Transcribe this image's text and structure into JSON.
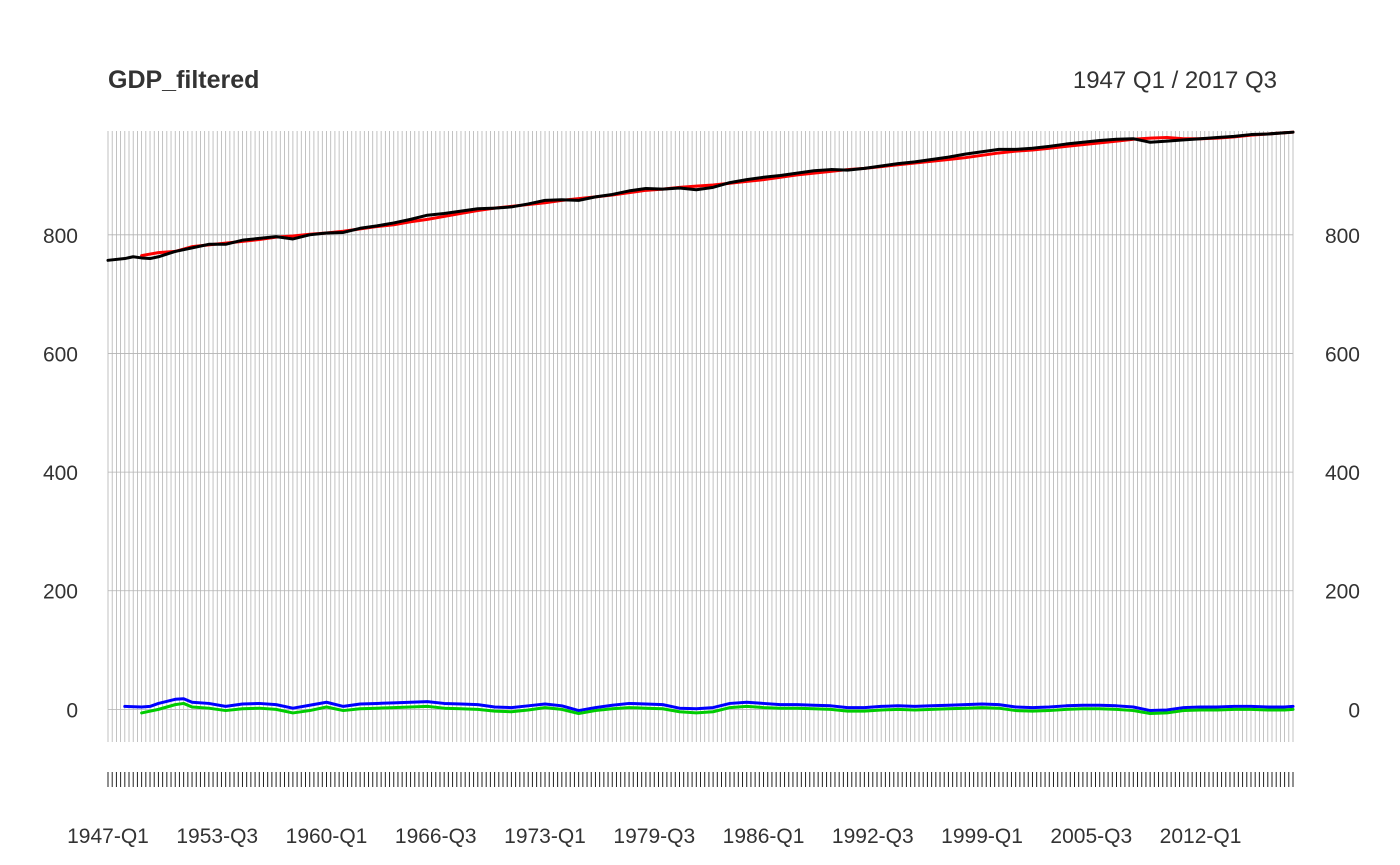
{
  "chart_data": {
    "type": "line",
    "title": "GDP_filtered",
    "subtitle": "1947 Q1 / 2017 Q3",
    "xlabel": "",
    "ylabel": "",
    "x_start": "1947-Q1",
    "x_end": "2017-Q3",
    "x_frequency": "quarterly",
    "xtick_labels": [
      "1947-Q1",
      "1953-Q3",
      "1960-Q1",
      "1966-Q3",
      "1973-Q1",
      "1979-Q3",
      "1986-Q1",
      "1992-Q3",
      "1999-Q1",
      "2005-Q3",
      "2012-Q1"
    ],
    "yticks": [
      0,
      200,
      400,
      600,
      800
    ],
    "ylim": [
      -55,
      975
    ],
    "grid": true,
    "y_axis_sides": [
      "left",
      "right"
    ],
    "series": [
      {
        "color": "#ff0000",
        "points": [
          [
            "1949-Q1",
            765
          ],
          [
            "1950-Q1",
            770
          ],
          [
            "1951-Q1",
            772
          ],
          [
            "1952-Q1",
            780
          ],
          [
            "1953-Q1",
            783
          ],
          [
            "1954-Q1",
            786
          ],
          [
            "1955-Q1",
            789
          ],
          [
            "1956-Q1",
            792
          ],
          [
            "1957-Q1",
            796
          ],
          [
            "1958-Q1",
            798
          ],
          [
            "1959-Q1",
            801
          ],
          [
            "1960-Q1",
            803
          ],
          [
            "1961-Q1",
            806
          ],
          [
            "1962-Q1",
            810
          ],
          [
            "1963-Q1",
            814
          ],
          [
            "1964-Q1",
            817
          ],
          [
            "1965-Q1",
            822
          ],
          [
            "1966-Q1",
            826
          ],
          [
            "1967-Q1",
            831
          ],
          [
            "1968-Q1",
            836
          ],
          [
            "1969-Q1",
            841
          ],
          [
            "1970-Q1",
            845
          ],
          [
            "1971-Q1",
            848
          ],
          [
            "1972-Q1",
            851
          ],
          [
            "1973-Q1",
            854
          ],
          [
            "1974-Q1",
            858
          ],
          [
            "1975-Q1",
            861
          ],
          [
            "1976-Q1",
            864
          ],
          [
            "1977-Q1",
            867
          ],
          [
            "1978-Q1",
            871
          ],
          [
            "1979-Q1",
            875
          ],
          [
            "1980-Q1",
            877
          ],
          [
            "1981-Q1",
            880
          ],
          [
            "1982-Q1",
            882
          ],
          [
            "1983-Q1",
            884
          ],
          [
            "1984-Q1",
            887
          ],
          [
            "1985-Q1",
            890
          ],
          [
            "1986-Q1",
            893
          ],
          [
            "1987-Q1",
            897
          ],
          [
            "1988-Q1",
            901
          ],
          [
            "1989-Q1",
            904
          ],
          [
            "1990-Q1",
            907
          ],
          [
            "1991-Q1",
            910
          ],
          [
            "1992-Q1",
            912
          ],
          [
            "1993-Q1",
            915
          ],
          [
            "1994-Q1",
            918
          ],
          [
            "1995-Q1",
            921
          ],
          [
            "1996-Q1",
            924
          ],
          [
            "1997-Q1",
            927
          ],
          [
            "1998-Q1",
            930
          ],
          [
            "1999-Q1",
            934
          ],
          [
            "2000-Q1",
            938
          ],
          [
            "2001-Q1",
            941
          ],
          [
            "2002-Q1",
            943
          ],
          [
            "2003-Q1",
            946
          ],
          [
            "2004-Q1",
            949
          ],
          [
            "2005-Q1",
            952
          ],
          [
            "2006-Q1",
            955
          ],
          [
            "2007-Q1",
            958
          ],
          [
            "2008-Q1",
            961
          ],
          [
            "2009-Q1",
            963
          ],
          [
            "2010-Q1",
            964
          ],
          [
            "2011-Q1",
            962
          ],
          [
            "2012-Q1",
            962
          ],
          [
            "2013-Q1",
            963
          ],
          [
            "2014-Q1",
            965
          ],
          [
            "2015-Q1",
            968
          ],
          [
            "2016-Q1",
            970
          ],
          [
            "2017-Q1",
            972
          ],
          [
            "2017-Q3",
            973
          ]
        ]
      },
      {
        "color": "#000000",
        "points": [
          [
            "1947-Q1",
            757
          ],
          [
            "1948-Q1",
            760
          ],
          [
            "1948-Q3",
            763
          ],
          [
            "1949-Q1",
            761
          ],
          [
            "1949-Q3",
            760
          ],
          [
            "1950-Q1",
            763
          ],
          [
            "1951-Q1",
            772
          ],
          [
            "1952-Q1",
            778
          ],
          [
            "1953-Q1",
            784
          ],
          [
            "1954-Q1",
            784
          ],
          [
            "1955-Q1",
            791
          ],
          [
            "1956-Q1",
            794
          ],
          [
            "1957-Q1",
            797
          ],
          [
            "1958-Q1",
            793
          ],
          [
            "1959-Q1",
            800
          ],
          [
            "1960-Q1",
            803
          ],
          [
            "1961-Q1",
            804
          ],
          [
            "1962-Q1",
            811
          ],
          [
            "1963-Q1",
            815
          ],
          [
            "1964-Q1",
            820
          ],
          [
            "1965-Q1",
            826
          ],
          [
            "1966-Q1",
            833
          ],
          [
            "1967-Q1",
            836
          ],
          [
            "1968-Q1",
            840
          ],
          [
            "1969-Q1",
            844
          ],
          [
            "1970-Q1",
            845
          ],
          [
            "1971-Q1",
            847
          ],
          [
            "1972-Q1",
            852
          ],
          [
            "1973-Q1",
            858
          ],
          [
            "1974-Q1",
            859
          ],
          [
            "1975-Q1",
            858
          ],
          [
            "1976-Q1",
            864
          ],
          [
            "1977-Q1",
            868
          ],
          [
            "1978-Q1",
            874
          ],
          [
            "1979-Q1",
            878
          ],
          [
            "1980-Q1",
            877
          ],
          [
            "1981-Q1",
            879
          ],
          [
            "1982-Q1",
            876
          ],
          [
            "1983-Q1",
            880
          ],
          [
            "1984-Q1",
            888
          ],
          [
            "1985-Q1",
            893
          ],
          [
            "1986-Q1",
            897
          ],
          [
            "1987-Q1",
            900
          ],
          [
            "1988-Q1",
            904
          ],
          [
            "1989-Q1",
            908
          ],
          [
            "1990-Q1",
            910
          ],
          [
            "1991-Q1",
            909
          ],
          [
            "1992-Q1",
            912
          ],
          [
            "1993-Q1",
            916
          ],
          [
            "1994-Q1",
            920
          ],
          [
            "1995-Q1",
            923
          ],
          [
            "1996-Q1",
            927
          ],
          [
            "1997-Q1",
            931
          ],
          [
            "1998-Q1",
            936
          ],
          [
            "1999-Q1",
            940
          ],
          [
            "2000-Q1",
            944
          ],
          [
            "2001-Q1",
            944
          ],
          [
            "2002-Q1",
            946
          ],
          [
            "2003-Q1",
            949
          ],
          [
            "2004-Q1",
            953
          ],
          [
            "2005-Q1",
            956
          ],
          [
            "2006-Q1",
            959
          ],
          [
            "2007-Q1",
            961
          ],
          [
            "2008-Q1",
            962
          ],
          [
            "2009-Q1",
            956
          ],
          [
            "2010-Q1",
            958
          ],
          [
            "2011-Q1",
            960
          ],
          [
            "2012-Q1",
            962
          ],
          [
            "2013-Q1",
            964
          ],
          [
            "2014-Q1",
            966
          ],
          [
            "2015-Q1",
            969
          ],
          [
            "2016-Q1",
            970
          ],
          [
            "2017-Q1",
            972
          ],
          [
            "2017-Q3",
            973
          ]
        ]
      },
      {
        "color": "#0000ff",
        "points": [
          [
            "1948-Q1",
            5
          ],
          [
            "1949-Q1",
            4
          ],
          [
            "1949-Q3",
            5
          ],
          [
            "1950-Q1",
            10
          ],
          [
            "1951-Q1",
            17
          ],
          [
            "1951-Q3",
            18
          ],
          [
            "1952-Q1",
            12
          ],
          [
            "1953-Q1",
            10
          ],
          [
            "1954-Q1",
            5
          ],
          [
            "1955-Q1",
            9
          ],
          [
            "1956-Q1",
            10
          ],
          [
            "1957-Q1",
            8
          ],
          [
            "1958-Q1",
            2
          ],
          [
            "1959-Q1",
            7
          ],
          [
            "1960-Q1",
            12
          ],
          [
            "1961-Q1",
            5
          ],
          [
            "1962-Q1",
            9
          ],
          [
            "1963-Q1",
            10
          ],
          [
            "1964-Q1",
            11
          ],
          [
            "1965-Q1",
            12
          ],
          [
            "1966-Q1",
            13
          ],
          [
            "1967-Q1",
            10
          ],
          [
            "1968-Q1",
            9
          ],
          [
            "1969-Q1",
            8
          ],
          [
            "1970-Q1",
            4
          ],
          [
            "1971-Q1",
            3
          ],
          [
            "1972-Q1",
            6
          ],
          [
            "1973-Q1",
            9
          ],
          [
            "1974-Q1",
            6
          ],
          [
            "1975-Q1",
            -2
          ],
          [
            "1976-Q1",
            3
          ],
          [
            "1977-Q1",
            7
          ],
          [
            "1978-Q1",
            10
          ],
          [
            "1979-Q1",
            9
          ],
          [
            "1980-Q1",
            8
          ],
          [
            "1981-Q1",
            2
          ],
          [
            "1982-Q1",
            1
          ],
          [
            "1983-Q1",
            3
          ],
          [
            "1984-Q1",
            10
          ],
          [
            "1985-Q1",
            12
          ],
          [
            "1986-Q1",
            10
          ],
          [
            "1987-Q1",
            8
          ],
          [
            "1988-Q1",
            8
          ],
          [
            "1989-Q1",
            7
          ],
          [
            "1990-Q1",
            6
          ],
          [
            "1991-Q1",
            3
          ],
          [
            "1992-Q1",
            3
          ],
          [
            "1993-Q1",
            5
          ],
          [
            "1994-Q1",
            6
          ],
          [
            "1995-Q1",
            5
          ],
          [
            "1996-Q1",
            6
          ],
          [
            "1997-Q1",
            7
          ],
          [
            "1998-Q1",
            8
          ],
          [
            "1999-Q1",
            9
          ],
          [
            "2000-Q1",
            8
          ],
          [
            "2001-Q1",
            4
          ],
          [
            "2002-Q1",
            3
          ],
          [
            "2003-Q1",
            4
          ],
          [
            "2004-Q1",
            6
          ],
          [
            "2005-Q1",
            7
          ],
          [
            "2006-Q1",
            7
          ],
          [
            "2007-Q1",
            6
          ],
          [
            "2008-Q1",
            4
          ],
          [
            "2009-Q1",
            -2
          ],
          [
            "2010-Q1",
            -1
          ],
          [
            "2011-Q1",
            3
          ],
          [
            "2012-Q1",
            4
          ],
          [
            "2013-Q1",
            4
          ],
          [
            "2014-Q1",
            5
          ],
          [
            "2015-Q1",
            5
          ],
          [
            "2016-Q1",
            4
          ],
          [
            "2017-Q1",
            4
          ],
          [
            "2017-Q3",
            5
          ]
        ]
      },
      {
        "color": "#00cc00",
        "points": [
          [
            "1949-Q1",
            -6
          ],
          [
            "1950-Q1",
            0
          ],
          [
            "1951-Q1",
            8
          ],
          [
            "1951-Q3",
            10
          ],
          [
            "1952-Q1",
            4
          ],
          [
            "1953-Q1",
            2
          ],
          [
            "1954-Q1",
            -2
          ],
          [
            "1955-Q1",
            1
          ],
          [
            "1956-Q1",
            2
          ],
          [
            "1957-Q1",
            0
          ],
          [
            "1958-Q1",
            -6
          ],
          [
            "1959-Q1",
            -2
          ],
          [
            "1960-Q1",
            4
          ],
          [
            "1961-Q1",
            -2
          ],
          [
            "1962-Q1",
            1
          ],
          [
            "1963-Q1",
            2
          ],
          [
            "1964-Q1",
            3
          ],
          [
            "1965-Q1",
            4
          ],
          [
            "1966-Q1",
            5
          ],
          [
            "1967-Q1",
            2
          ],
          [
            "1968-Q1",
            1
          ],
          [
            "1969-Q1",
            0
          ],
          [
            "1970-Q1",
            -3
          ],
          [
            "1971-Q1",
            -4
          ],
          [
            "1972-Q1",
            -1
          ],
          [
            "1973-Q1",
            3
          ],
          [
            "1974-Q1",
            0
          ],
          [
            "1975-Q1",
            -7
          ],
          [
            "1976-Q1",
            -2
          ],
          [
            "1977-Q1",
            1
          ],
          [
            "1978-Q1",
            3
          ],
          [
            "1979-Q1",
            2
          ],
          [
            "1980-Q1",
            1
          ],
          [
            "1981-Q1",
            -4
          ],
          [
            "1982-Q1",
            -6
          ],
          [
            "1983-Q1",
            -4
          ],
          [
            "1984-Q1",
            3
          ],
          [
            "1985-Q1",
            5
          ],
          [
            "1986-Q1",
            3
          ],
          [
            "1987-Q1",
            2
          ],
          [
            "1988-Q1",
            2
          ],
          [
            "1989-Q1",
            1
          ],
          [
            "1990-Q1",
            0
          ],
          [
            "1991-Q1",
            -3
          ],
          [
            "1992-Q1",
            -3
          ],
          [
            "1993-Q1",
            -1
          ],
          [
            "1994-Q1",
            0
          ],
          [
            "1995-Q1",
            -1
          ],
          [
            "1996-Q1",
            0
          ],
          [
            "1997-Q1",
            1
          ],
          [
            "1998-Q1",
            2
          ],
          [
            "1999-Q1",
            3
          ],
          [
            "2000-Q1",
            2
          ],
          [
            "2001-Q1",
            -2
          ],
          [
            "2002-Q1",
            -3
          ],
          [
            "2003-Q1",
            -2
          ],
          [
            "2004-Q1",
            0
          ],
          [
            "2005-Q1",
            1
          ],
          [
            "2006-Q1",
            1
          ],
          [
            "2007-Q1",
            0
          ],
          [
            "2008-Q1",
            -2
          ],
          [
            "2009-Q1",
            -7
          ],
          [
            "2010-Q1",
            -6
          ],
          [
            "2011-Q1",
            -2
          ],
          [
            "2012-Q1",
            -1
          ],
          [
            "2013-Q1",
            -1
          ],
          [
            "2014-Q1",
            0
          ],
          [
            "2015-Q1",
            0
          ],
          [
            "2016-Q1",
            -1
          ],
          [
            "2017-Q1",
            -1
          ],
          [
            "2017-Q3",
            0
          ]
        ]
      }
    ]
  }
}
